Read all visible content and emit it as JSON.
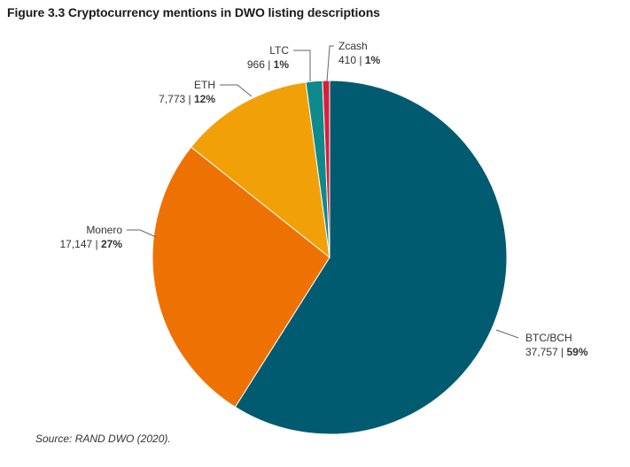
{
  "title": "Figure 3.3 Cryptocurrency mentions in DWO listing descriptions",
  "source": "Source: RAND DWO (2020).",
  "chart_data": {
    "type": "pie",
    "title": "Figure 3.3 Cryptocurrency mentions in DWO listing descriptions",
    "slices": [
      {
        "name": "BTC/BCH",
        "value": 37757,
        "value_label": "37,757",
        "percent_label": "59%",
        "color": "#005B70"
      },
      {
        "name": "Monero",
        "value": 17147,
        "value_label": "17,147",
        "percent_label": "27%",
        "color": "#EE7203"
      },
      {
        "name": "ETH",
        "value": 7773,
        "value_label": "7,773",
        "percent_label": "12%",
        "color": "#F2A007"
      },
      {
        "name": "LTC",
        "value": 966,
        "value_label": "966",
        "percent_label": "1%",
        "color": "#0E8A8C"
      },
      {
        "name": "Zcash",
        "value": 410,
        "value_label": "410",
        "percent_label": "1%",
        "color": "#D91F3C"
      }
    ],
    "start": "12 o'clock",
    "direction": "clockwise",
    "legend": "none"
  }
}
